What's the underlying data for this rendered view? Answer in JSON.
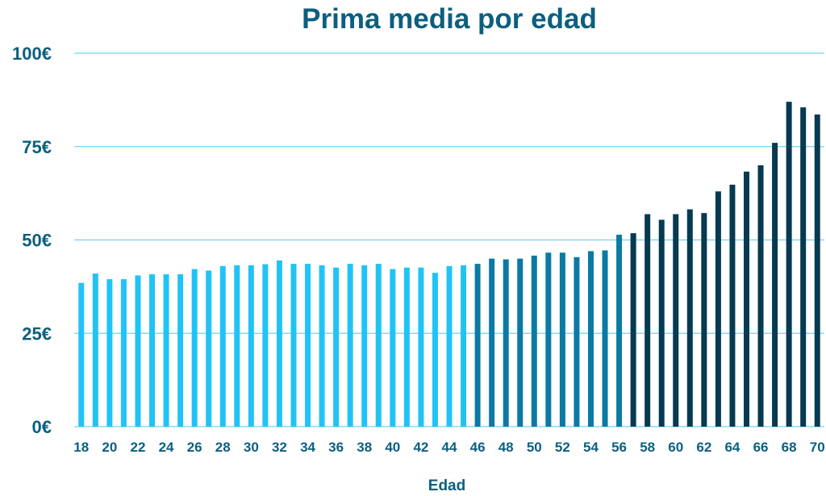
{
  "chart_data": {
    "type": "bar",
    "title": "Prima media por edad",
    "xlabel": "Edad",
    "ylabel": "",
    "ylim": [
      0,
      100
    ],
    "yticks": [
      "0€",
      "25€",
      "50€",
      "75€",
      "100€"
    ],
    "ytick_values": [
      0,
      25,
      50,
      75,
      100
    ],
    "grid": true,
    "categories": [
      18,
      19,
      20,
      21,
      22,
      23,
      24,
      25,
      26,
      27,
      28,
      29,
      30,
      31,
      32,
      33,
      34,
      35,
      36,
      37,
      38,
      39,
      40,
      41,
      42,
      43,
      44,
      45,
      46,
      47,
      48,
      49,
      50,
      51,
      52,
      53,
      54,
      55,
      56,
      57,
      58,
      59,
      60,
      61,
      62,
      63,
      64,
      65,
      66,
      67,
      68,
      69,
      70
    ],
    "labeled_categories": [
      18,
      20,
      22,
      24,
      26,
      28,
      30,
      32,
      34,
      36,
      38,
      40,
      42,
      44,
      46,
      48,
      50,
      52,
      54,
      56,
      58,
      60,
      62,
      64,
      66,
      68,
      70
    ],
    "values": [
      38.5,
      41,
      39.5,
      39.5,
      40.5,
      40.8,
      40.8,
      40.8,
      42.2,
      41.8,
      43,
      43.2,
      43.2,
      43.5,
      44.5,
      43.6,
      43.6,
      43.2,
      42.6,
      43.6,
      43.2,
      43.6,
      42.2,
      42.6,
      42.6,
      41.2,
      43,
      43.2,
      43.6,
      45,
      44.8,
      45,
      45.8,
      46.6,
      46.6,
      45.4,
      47,
      47.2,
      51.4,
      51.8,
      56.9,
      55.4,
      56.9,
      58.2,
      57.2,
      63,
      64.8,
      68.3,
      70,
      76,
      87,
      85.5,
      83.6
    ],
    "colors": {
      "light": "#21c3f7",
      "medium": "#0b7aa3",
      "dark": "#063a50",
      "grid": "#6fd4f5",
      "text": "#0b5f80"
    },
    "color_groups": [
      {
        "from": 18,
        "to": 45,
        "color": "light"
      },
      {
        "from": 46,
        "to": 56,
        "color": "medium"
      },
      {
        "from": 57,
        "to": 70,
        "color": "dark"
      }
    ]
  }
}
